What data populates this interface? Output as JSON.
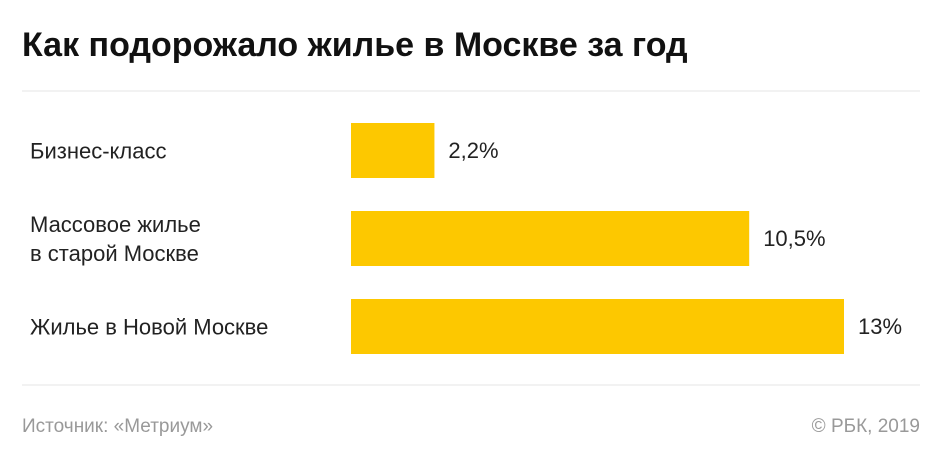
{
  "chart_data": {
    "type": "barh",
    "title": "Как подорожало жилье в Москве за год",
    "categories": [
      "Бизнес-класс",
      "Массовое жилье\nв старой Москве",
      "Жилье в Новой Москве"
    ],
    "values": [
      2.2,
      10.5,
      13
    ],
    "value_labels": [
      "2,2%",
      "10,5%",
      "13%"
    ],
    "color": "#fdc800",
    "source": "Источник: «Метриум»",
    "credit": "© РБК, 2019"
  }
}
